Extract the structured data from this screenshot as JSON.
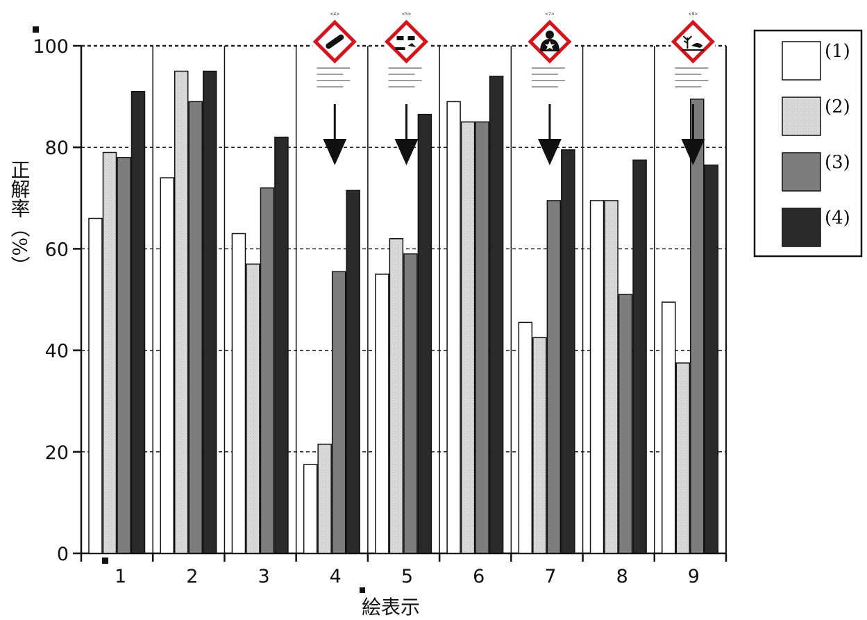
{
  "chart_data": {
    "type": "bar",
    "title": "",
    "xlabel": "絵表示",
    "ylabel": "正解率（%）",
    "ylim": [
      0,
      100
    ],
    "yticks": [
      0,
      20,
      40,
      60,
      80,
      100
    ],
    "grid": "horizontal dashed",
    "legend_position": "right",
    "categories": [
      "1",
      "2",
      "3",
      "4",
      "5",
      "6",
      "7",
      "8",
      "9"
    ],
    "series": [
      {
        "name": "(1)",
        "color": "#ffffff",
        "values": [
          66,
          74,
          63,
          17.5,
          55,
          89,
          45.5,
          69.5,
          49.5
        ]
      },
      {
        "name": "(2)",
        "color": "#d4d4d4",
        "values": [
          79,
          95,
          57,
          21.5,
          62,
          85,
          42.5,
          69.5,
          37.5
        ]
      },
      {
        "name": "(3)",
        "color": "#7d7d7d",
        "values": [
          78,
          89,
          72,
          55.5,
          59,
          85,
          69.5,
          51,
          89.5
        ]
      },
      {
        "name": "(4)",
        "color": "#2a2a2a",
        "values": [
          91,
          95,
          82,
          71.5,
          86.5,
          94,
          79.5,
          77.5,
          76.5
        ]
      }
    ],
    "annotations": [
      {
        "category": "4",
        "symbol": "gas-cylinder-icon",
        "number": "<4>",
        "arrow": "down"
      },
      {
        "category": "5",
        "symbol": "corrosion-icon",
        "number": "<5>",
        "arrow": "down"
      },
      {
        "category": "7",
        "symbol": "health-hazard-icon",
        "number": "<7>",
        "arrow": "down"
      },
      {
        "category": "9",
        "symbol": "environment-icon",
        "number": "<9>",
        "arrow": "down"
      }
    ]
  }
}
